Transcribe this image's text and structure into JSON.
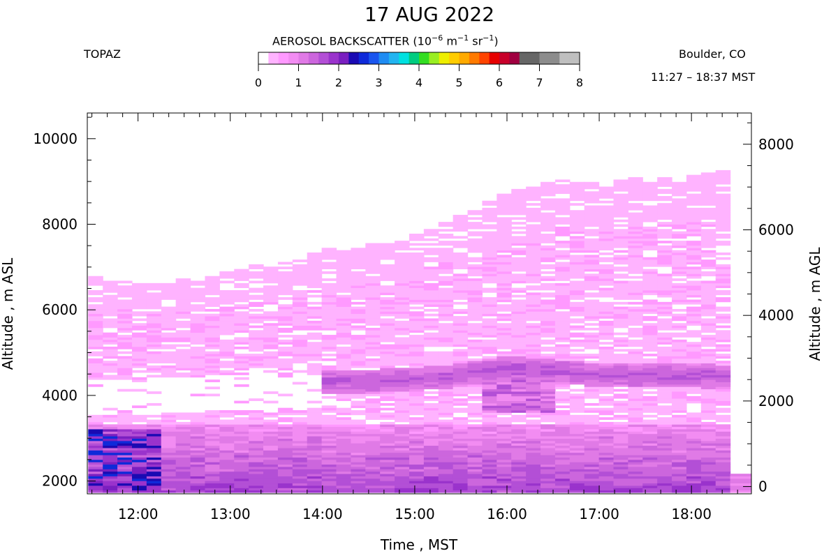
{
  "header": {
    "title": "17 AUG 2022",
    "site": "TOPAZ",
    "location": "Boulder, CO",
    "time_range": "11:27 – 18:37 MST"
  },
  "colorbar": {
    "title_prefix": "AEROSOL BACKSCATTER (10",
    "exp1": "−6",
    "mid1": " m",
    "exp2": "−1",
    "mid2": " sr",
    "exp3": "−1",
    "suffix": ")",
    "ticks": [
      "0",
      "1",
      "2",
      "3",
      "4",
      "5",
      "6",
      "7",
      "8"
    ],
    "range": [
      0,
      8
    ],
    "colors": [
      "#ffffff",
      "#ffb3ff",
      "#ff99ff",
      "#f28cf2",
      "#e07ae6",
      "#cc66dd",
      "#b34fd6",
      "#9a33cc",
      "#7a1fc0",
      "#1a0ab3",
      "#0f2ad9",
      "#1a55ee",
      "#1f8cf2",
      "#22b4f0",
      "#00e0e0",
      "#00cc80",
      "#33dd22",
      "#99ee22",
      "#eeee00",
      "#ffcc00",
      "#ffaa00",
      "#ff7a00",
      "#ff4400",
      "#e60000",
      "#c8002a",
      "#a00040",
      "#666666",
      "#666666",
      "#8c8c8c",
      "#8c8c8c",
      "#bfbfbf",
      "#bfbfbf"
    ]
  },
  "chart_data": {
    "type": "heatmap",
    "title": "17 AUG 2022",
    "xlabel": "Time , MST",
    "ylabel_left": "Altitude , m ASL",
    "ylabel_right": "Altitude , m AGL",
    "x_ticks": [
      "12:00",
      "13:00",
      "14:00",
      "15:00",
      "16:00",
      "17:00",
      "18:00"
    ],
    "y_left_ticks": [
      "2000",
      "4000",
      "6000",
      "8000",
      "10000"
    ],
    "y_right_ticks": [
      "0",
      "2000",
      "4000",
      "6000",
      "8000"
    ],
    "x_range_hours": [
      11.45,
      18.65
    ],
    "y_left_range": [
      1700,
      10600
    ],
    "y_right_range": [
      -170,
      8730
    ],
    "variable": "Aerosol backscatter (10^-6 m^-1 sr^-1)",
    "value_range": [
      0,
      8
    ],
    "profile_top_m_asl": [
      [
        11.5,
        6750
      ],
      [
        12.0,
        6650
      ],
      [
        12.5,
        6650
      ],
      [
        13.0,
        6850
      ],
      [
        13.5,
        7050
      ],
      [
        14.0,
        7350
      ],
      [
        14.5,
        7500
      ],
      [
        15.0,
        7700
      ],
      [
        15.5,
        8200
      ],
      [
        16.0,
        8700
      ],
      [
        16.5,
        8950
      ],
      [
        17.0,
        9000
      ],
      [
        17.5,
        9000
      ],
      [
        18.0,
        9100
      ],
      [
        18.4,
        9200
      ]
    ],
    "elevated_layer_center_m_asl": [
      [
        14.0,
        4300
      ],
      [
        14.5,
        4300
      ],
      [
        15.0,
        4350
      ],
      [
        15.5,
        4450
      ],
      [
        16.0,
        4600
      ],
      [
        16.5,
        4550
      ],
      [
        17.0,
        4450
      ],
      [
        17.5,
        4450
      ],
      [
        18.0,
        4450
      ],
      [
        18.4,
        4400
      ]
    ],
    "peak_backscatter_regions": [
      {
        "time_range": [
          11.45,
          12.3
        ],
        "altitude_range_m_asl": [
          1750,
          3200
        ],
        "value": 2.5
      },
      {
        "time_range": [
          15.75,
          16.5
        ],
        "altitude_range_m_asl": [
          3600,
          4700
        ],
        "value": 1.5
      }
    ]
  }
}
